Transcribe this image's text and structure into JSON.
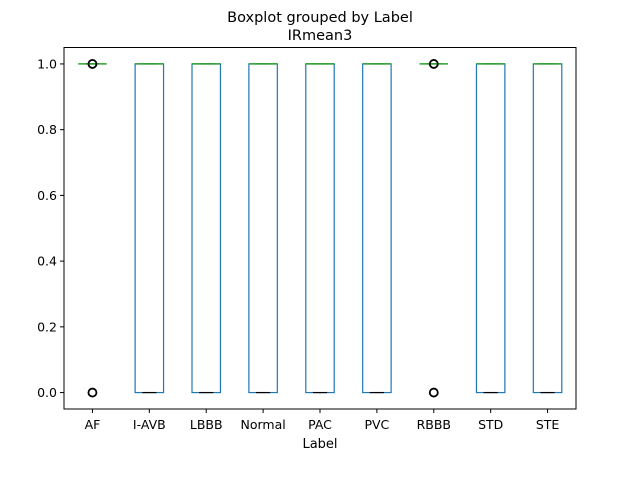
{
  "chart_data": {
    "type": "boxplot",
    "suptitle": "Boxplot grouped by Label",
    "title": "IRmean3",
    "xlabel": "Label",
    "ylabel": "",
    "ylim": [
      -0.05,
      1.05
    ],
    "yticks": [
      0.0,
      0.2,
      0.4,
      0.6,
      0.8,
      1.0
    ],
    "ytick_labels": [
      "0.0",
      "0.2",
      "0.4",
      "0.6",
      "0.8",
      "1.0"
    ],
    "grid": false,
    "categories": [
      "AF",
      "I-AVB",
      "LBBB",
      "Normal",
      "PAC",
      "PVC",
      "RBBB",
      "STD",
      "STE"
    ],
    "boxes": [
      {
        "label": "AF",
        "whislo": 1,
        "q1": 1,
        "med": 1,
        "q3": 1,
        "whishi": 1,
        "fliers": [
          0,
          1
        ]
      },
      {
        "label": "I-AVB",
        "whislo": 0,
        "q1": 0,
        "med": 1,
        "q3": 1,
        "whishi": 1,
        "fliers": []
      },
      {
        "label": "LBBB",
        "whislo": 0,
        "q1": 0,
        "med": 1,
        "q3": 1,
        "whishi": 1,
        "fliers": []
      },
      {
        "label": "Normal",
        "whislo": 0,
        "q1": 0,
        "med": 1,
        "q3": 1,
        "whishi": 1,
        "fliers": []
      },
      {
        "label": "PAC",
        "whislo": 0,
        "q1": 0,
        "med": 1,
        "q3": 1,
        "whishi": 1,
        "fliers": []
      },
      {
        "label": "PVC",
        "whislo": 0,
        "q1": 0,
        "med": 1,
        "q3": 1,
        "whishi": 1,
        "fliers": []
      },
      {
        "label": "RBBB",
        "whislo": 1,
        "q1": 1,
        "med": 1,
        "q3": 1,
        "whishi": 1,
        "fliers": [
          0,
          1
        ]
      },
      {
        "label": "STD",
        "whislo": 0,
        "q1": 0,
        "med": 1,
        "q3": 1,
        "whishi": 1,
        "fliers": []
      },
      {
        "label": "STE",
        "whislo": 0,
        "q1": 0,
        "med": 1,
        "q3": 1,
        "whishi": 1,
        "fliers": []
      }
    ],
    "colors": {
      "box": "#1f77b4",
      "median": "#2ca02c",
      "flier": "#000000",
      "axis": "#000000"
    }
  }
}
